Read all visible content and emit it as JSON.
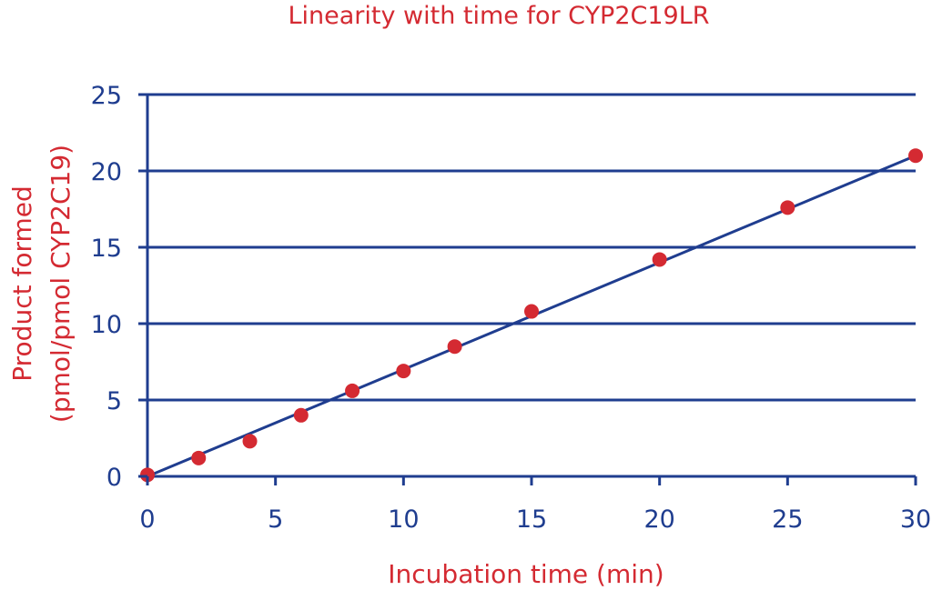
{
  "chart_data": {
    "type": "scatter",
    "title": "Linearity with time for CYP2C19LR",
    "xlabel": "Incubation time (min)",
    "ylabel_line1": "Product formed",
    "ylabel_line2": "(pmol/pmol CYP2C19)",
    "xlim": [
      0,
      30
    ],
    "ylim": [
      0,
      25
    ],
    "x_ticks": [
      0,
      5,
      10,
      15,
      20,
      25,
      30
    ],
    "y_ticks": [
      0,
      5,
      10,
      15,
      20,
      25
    ],
    "grid": "horizontal",
    "series": [
      {
        "x": [
          0,
          2,
          4,
          6,
          8,
          10,
          12,
          15,
          20,
          25,
          30
        ],
        "y": [
          0.1,
          1.2,
          2.3,
          4.0,
          5.6,
          6.9,
          8.5,
          10.8,
          14.2,
          17.6,
          21.0
        ]
      }
    ],
    "trendline": {
      "x": [
        0,
        30
      ],
      "y": [
        0,
        21.0
      ]
    },
    "colors": {
      "points": "#d42a32",
      "lines": "#1f3d8f",
      "labels": "#d42a32",
      "ticks": "#1f3d8f"
    }
  }
}
